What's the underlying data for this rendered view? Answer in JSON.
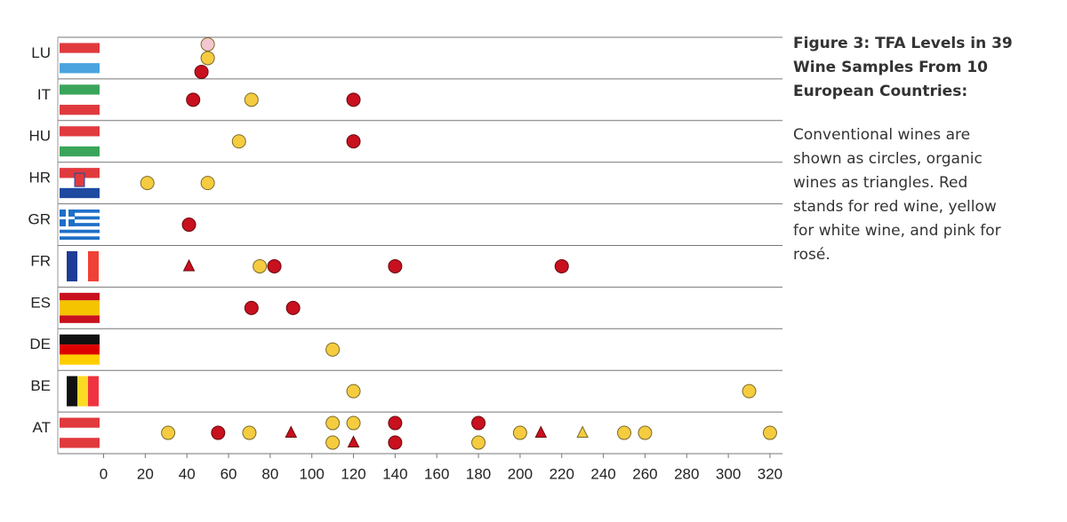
{
  "chart_data": {
    "type": "dot",
    "title": "Figure 3: TFA Levels in 39 Wine Samples From 10 European Countries:",
    "subtitle": "Conventional wines are shown as circles, organic wines as triangles. Red stands for red wine, yellow for white wine, and pink for rosé.",
    "categories": [
      "LU",
      "IT",
      "HU",
      "HR",
      "GR",
      "FR",
      "ES",
      "DE",
      "BE",
      "AT"
    ],
    "xlim": [
      -22,
      326
    ],
    "xticks": [
      0,
      20,
      40,
      60,
      80,
      100,
      120,
      140,
      160,
      180,
      200,
      220,
      240,
      260,
      280,
      300,
      320
    ],
    "grid": true,
    "points": [
      {
        "category": "LU",
        "x": 50,
        "color": "#f4c6cf",
        "shape": "circle"
      },
      {
        "category": "LU",
        "x": 50,
        "color": "#f5cc3f",
        "shape": "circle"
      },
      {
        "category": "LU",
        "x": 47,
        "color": "#c8101e",
        "shape": "circle"
      },
      {
        "category": "IT",
        "x": 43,
        "color": "#c8101e",
        "shape": "circle"
      },
      {
        "category": "IT",
        "x": 71,
        "color": "#f5cc3f",
        "shape": "circle"
      },
      {
        "category": "IT",
        "x": 120,
        "color": "#c8101e",
        "shape": "circle"
      },
      {
        "category": "HU",
        "x": 65,
        "color": "#f5cc3f",
        "shape": "circle"
      },
      {
        "category": "HU",
        "x": 120,
        "color": "#c8101e",
        "shape": "circle"
      },
      {
        "category": "HR",
        "x": 21,
        "color": "#f5cc3f",
        "shape": "circle"
      },
      {
        "category": "HR",
        "x": 50,
        "color": "#f5cc3f",
        "shape": "circle"
      },
      {
        "category": "GR",
        "x": 41,
        "color": "#c8101e",
        "shape": "circle"
      },
      {
        "category": "FR",
        "x": 41,
        "color": "#c8101e",
        "shape": "triangle"
      },
      {
        "category": "FR",
        "x": 75,
        "color": "#f5cc3f",
        "shape": "circle"
      },
      {
        "category": "FR",
        "x": 82,
        "color": "#c8101e",
        "shape": "circle"
      },
      {
        "category": "FR",
        "x": 140,
        "color": "#c8101e",
        "shape": "circle"
      },
      {
        "category": "FR",
        "x": 220,
        "color": "#c8101e",
        "shape": "circle"
      },
      {
        "category": "ES",
        "x": 71,
        "color": "#c8101e",
        "shape": "circle"
      },
      {
        "category": "ES",
        "x": 91,
        "color": "#c8101e",
        "shape": "circle"
      },
      {
        "category": "DE",
        "x": 110,
        "color": "#f5cc3f",
        "shape": "circle"
      },
      {
        "category": "BE",
        "x": 120,
        "color": "#f5cc3f",
        "shape": "circle"
      },
      {
        "category": "BE",
        "x": 310,
        "color": "#f5cc3f",
        "shape": "circle"
      },
      {
        "category": "AT",
        "x": 31,
        "color": "#f5cc3f",
        "shape": "circle"
      },
      {
        "category": "AT",
        "x": 55,
        "color": "#c8101e",
        "shape": "circle"
      },
      {
        "category": "AT",
        "x": 70,
        "color": "#f5cc3f",
        "shape": "circle"
      },
      {
        "category": "AT",
        "x": 90,
        "color": "#c8101e",
        "shape": "triangle"
      },
      {
        "category": "AT",
        "x": 110,
        "color": "#f5cc3f",
        "shape": "circle"
      },
      {
        "category": "AT",
        "x": 110,
        "color": "#f5cc3f",
        "shape": "circle"
      },
      {
        "category": "AT",
        "x": 120,
        "color": "#f5cc3f",
        "shape": "circle"
      },
      {
        "category": "AT",
        "x": 120,
        "color": "#c8101e",
        "shape": "triangle"
      },
      {
        "category": "AT",
        "x": 140,
        "color": "#c8101e",
        "shape": "circle"
      },
      {
        "category": "AT",
        "x": 140,
        "color": "#c8101e",
        "shape": "circle"
      },
      {
        "category": "AT",
        "x": 180,
        "color": "#c8101e",
        "shape": "circle"
      },
      {
        "category": "AT",
        "x": 180,
        "color": "#f5cc3f",
        "shape": "circle"
      },
      {
        "category": "AT",
        "x": 200,
        "color": "#f5cc3f",
        "shape": "circle"
      },
      {
        "category": "AT",
        "x": 210,
        "color": "#c8101e",
        "shape": "triangle"
      },
      {
        "category": "AT",
        "x": 230,
        "color": "#f5cc3f",
        "shape": "triangle"
      },
      {
        "category": "AT",
        "x": 250,
        "color": "#f5cc3f",
        "shape": "circle"
      },
      {
        "category": "AT",
        "x": 260,
        "color": "#f5cc3f",
        "shape": "circle"
      },
      {
        "category": "AT",
        "x": 320,
        "color": "#f5cc3f",
        "shape": "circle"
      }
    ]
  }
}
